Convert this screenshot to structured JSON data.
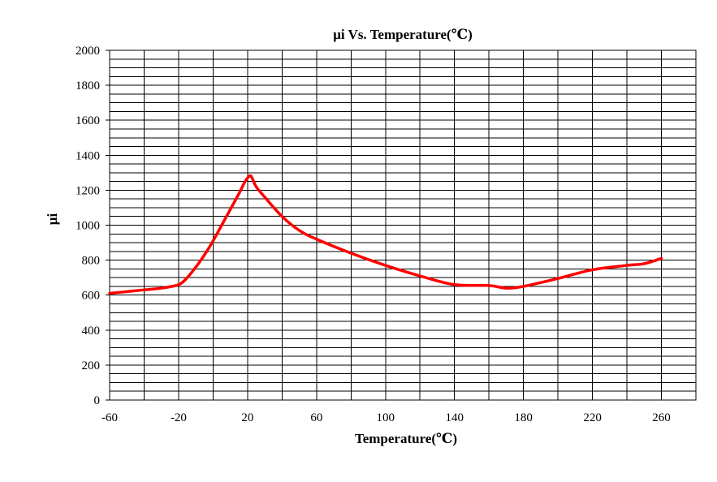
{
  "chart_data": {
    "type": "line",
    "title": "μi Vs. Temperature(℃)",
    "xlabel": "Temperature(℃)",
    "ylabel": "μi",
    "xlim": [
      -60,
      280
    ],
    "ylim": [
      0,
      2000
    ],
    "x_ticks": [
      -60,
      -20,
      20,
      60,
      100,
      140,
      180,
      220,
      260
    ],
    "y_ticks": [
      0,
      200,
      400,
      600,
      800,
      1000,
      1200,
      1400,
      1600,
      1800,
      2000
    ],
    "grid": true,
    "legend": "none",
    "series": [
      {
        "color": "#ff0000",
        "x": [
          -60,
          -50,
          -40,
          -30,
          -20,
          -15,
          -10,
          -5,
          0,
          5,
          10,
          15,
          18,
          20,
          22,
          25,
          30,
          40,
          50,
          60,
          80,
          100,
          120,
          140,
          160,
          170,
          180,
          200,
          220,
          240,
          250,
          260
        ],
        "y": [
          610,
          620,
          630,
          640,
          660,
          700,
          760,
          830,
          910,
          1000,
          1090,
          1180,
          1240,
          1270,
          1280,
          1220,
          1160,
          1050,
          970,
          920,
          840,
          770,
          710,
          660,
          655,
          640,
          650,
          695,
          745,
          770,
          780,
          810
        ]
      }
    ]
  }
}
